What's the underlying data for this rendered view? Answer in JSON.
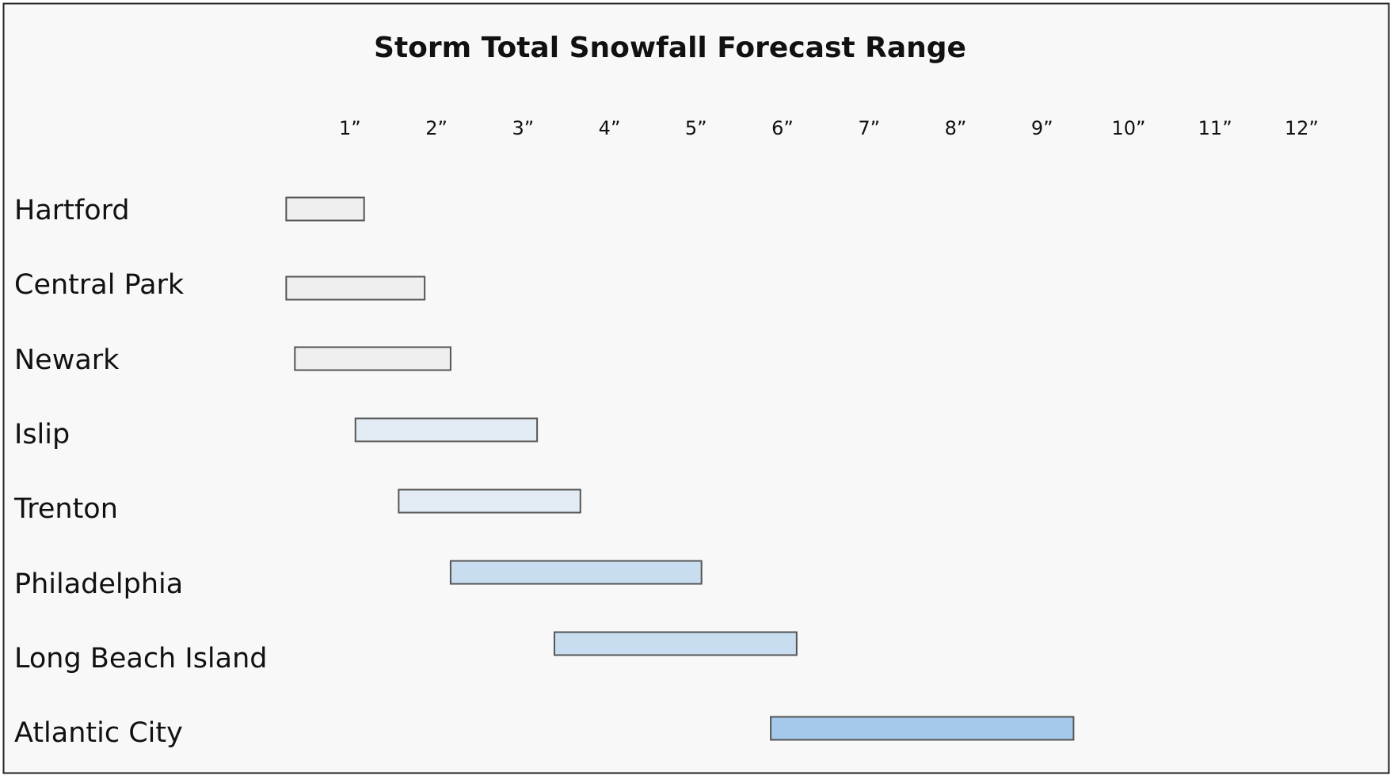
{
  "chart_data": {
    "type": "range-bar",
    "title": "Storm Total Snowfall Forecast Range",
    "categories": [
      "Hartford",
      "Central Park",
      "Newark",
      "Islip",
      "Trenton",
      "Philadelphia",
      "Long Beach Island",
      "Atlantic City"
    ],
    "low": [
      0.3,
      0.3,
      0.4,
      1.1,
      1.6,
      2.2,
      3.4,
      5.9
    ],
    "high": [
      1.2,
      1.9,
      2.2,
      3.2,
      3.7,
      5.1,
      6.2,
      9.4
    ],
    "colors": [
      "#efefef",
      "#efefef",
      "#efefef",
      "#e3ecf5",
      "#e3ecf5",
      "#c9ddf0",
      "#c9ddf0",
      "#a5c9ea"
    ],
    "xlim": [
      0,
      12.5
    ],
    "xticks": [
      {
        "value": 1,
        "label": "1”"
      },
      {
        "value": 2,
        "label": "2”"
      },
      {
        "value": 3,
        "label": "3”"
      },
      {
        "value": 4,
        "label": "4”"
      },
      {
        "value": 5,
        "label": "5”"
      },
      {
        "value": 6,
        "label": "6”"
      },
      {
        "value": 7,
        "label": "7”"
      },
      {
        "value": 8,
        "label": "8”"
      },
      {
        "value": 9,
        "label": "9”"
      },
      {
        "value": 10,
        "label": "10”"
      },
      {
        "value": 11,
        "label": "11”"
      },
      {
        "value": 12,
        "label": "12”"
      }
    ]
  }
}
